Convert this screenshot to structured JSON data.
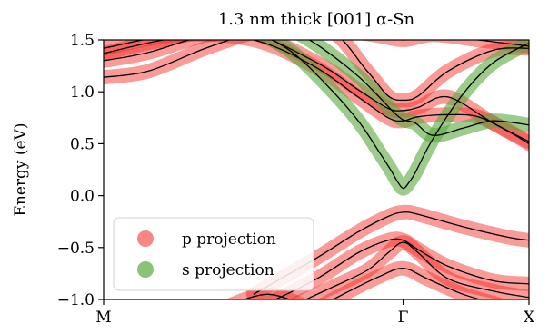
{
  "chart_data": {
    "type": "line",
    "title": "1.3 nm thick [001] α-Sn",
    "xlabel": "",
    "ylabel": "Energy (eV)",
    "x_ticks": [
      "M",
      "Γ",
      "X"
    ],
    "x_tick_positions": [
      0,
      1,
      1.42
    ],
    "xlim": [
      0,
      1.42
    ],
    "ylim": [
      -1.0,
      1.5
    ],
    "y_ticks": [
      -1.0,
      -0.5,
      0.0,
      0.5,
      1.0,
      1.5
    ],
    "y_tick_labels": [
      "−1.0",
      "−0.5",
      "0.0",
      "0.5",
      "1.0",
      "1.5"
    ],
    "legend_position": "lower-left",
    "series": [
      {
        "name": "p projection",
        "color": "#f2231d"
      },
      {
        "name": "s projection",
        "color": "#5aa83e"
      }
    ],
    "bands": [
      {
        "x": [
          0,
          0.15,
          0.35,
          0.55,
          0.75,
          0.9,
          1.0,
          1.1,
          1.25,
          1.42
        ],
        "y": [
          1.14,
          1.2,
          1.43,
          1.6,
          1.6,
          1.55,
          1.5,
          1.55,
          1.5,
          1.44
        ],
        "proj": "p"
      },
      {
        "x": [
          0,
          0.15,
          0.35,
          0.55,
          0.75,
          0.88,
          0.95,
          1.0,
          1.05,
          1.15,
          1.3,
          1.42
        ],
        "y": [
          1.3,
          1.38,
          1.55,
          1.6,
          1.6,
          1.2,
          0.96,
          0.92,
          0.96,
          1.2,
          1.4,
          1.42
        ],
        "proj": "p"
      },
      {
        "x": [
          0,
          0.2,
          0.45,
          0.7,
          0.85,
          0.95,
          1.0,
          1.05,
          1.15,
          1.3,
          1.42
        ],
        "y": [
          1.37,
          1.5,
          1.6,
          1.3,
          1.02,
          0.84,
          0.82,
          0.85,
          0.95,
          0.7,
          0.52
        ],
        "proj": "p"
      },
      {
        "x": [
          0,
          0.25,
          0.5,
          0.7,
          0.85,
          0.95,
          1.0,
          1.05,
          1.15,
          1.25,
          1.35,
          1.42
        ],
        "y": [
          1.42,
          1.55,
          1.5,
          1.25,
          0.95,
          0.75,
          0.72,
          0.76,
          0.78,
          0.76,
          0.62,
          0.5
        ],
        "proj": "p"
      },
      {
        "x": [
          0.5,
          0.63,
          0.75,
          0.85,
          0.92,
          0.96,
          0.98,
          1.0,
          1.02,
          1.04,
          1.1,
          1.2,
          1.3,
          1.42
        ],
        "y": [
          1.6,
          1.38,
          1.05,
          0.72,
          0.42,
          0.24,
          0.14,
          0.07,
          0.13,
          0.22,
          0.55,
          0.98,
          1.28,
          1.47
        ],
        "proj": "s"
      },
      {
        "x": [
          0.63,
          0.73,
          0.85,
          0.93,
          0.97,
          1.0,
          1.04,
          1.1,
          1.2,
          1.3,
          1.42
        ],
        "y": [
          1.6,
          1.42,
          1.15,
          0.92,
          0.8,
          0.73,
          0.7,
          0.58,
          0.65,
          0.72,
          0.68
        ],
        "proj": "s"
      },
      {
        "x": [
          0.5,
          0.7,
          0.85,
          0.95,
          1.0,
          1.05,
          1.2,
          1.35,
          1.42
        ],
        "y": [
          -0.95,
          -0.62,
          -0.35,
          -0.2,
          -0.16,
          -0.18,
          -0.3,
          -0.4,
          -0.43
        ],
        "proj": "p"
      },
      {
        "x": [
          0.5,
          0.7,
          0.85,
          0.95,
          1.0,
          1.05,
          1.15,
          1.3,
          1.42
        ],
        "y": [
          -1.1,
          -0.82,
          -0.55,
          -0.43,
          -0.43,
          -0.52,
          -0.68,
          -0.82,
          -0.85
        ],
        "proj": "p"
      },
      {
        "x": [
          0.6,
          0.75,
          0.88,
          0.95,
          1.0,
          1.05,
          1.15,
          1.3,
          1.42
        ],
        "y": [
          -1.1,
          -0.9,
          -0.72,
          -0.55,
          -0.45,
          -0.55,
          -0.8,
          -0.92,
          -0.98
        ],
        "proj": "p"
      },
      {
        "x": [
          0.7,
          0.82,
          0.92,
          1.0,
          1.08,
          1.2,
          1.32
        ],
        "y": [
          -1.1,
          -0.92,
          -0.78,
          -0.7,
          -0.8,
          -0.95,
          -1.05
        ],
        "proj": "p"
      },
      {
        "x": [
          0.4,
          0.55,
          0.7
        ],
        "y": [
          -1.08,
          -0.95,
          -1.1
        ],
        "proj": "p"
      }
    ]
  }
}
